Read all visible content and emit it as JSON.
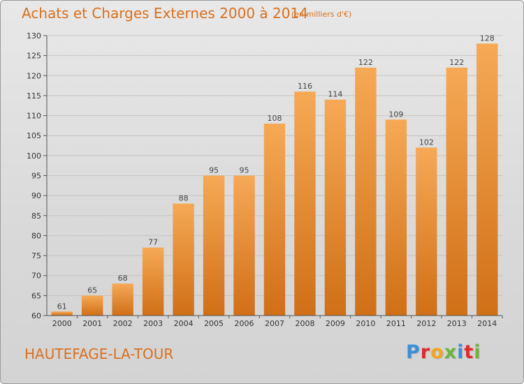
{
  "header": {
    "title": "Achats et Charges Externes 2000 à 2014",
    "unit": "(en milliers d'€)"
  },
  "footer": {
    "city": "HAUTEFAGE-LA-TOUR",
    "logo": [
      "P",
      "r",
      "o",
      "x",
      "i",
      "t",
      "i"
    ]
  },
  "colors": {
    "bar_top": "#f6a955",
    "bar_bottom": "#d06f16",
    "title": "#d9701e",
    "logo": [
      "#3a8fd9",
      "#e8262a",
      "#f2a81d",
      "#6db53a",
      "#3a8fd9",
      "#e8262a",
      "#6db53a"
    ]
  },
  "chart_data": {
    "type": "bar",
    "title": "Achats et Charges Externes 2000 à 2014",
    "xlabel": "",
    "ylabel": "",
    "categories": [
      "2000",
      "2001",
      "2002",
      "2003",
      "2004",
      "2005",
      "2006",
      "2007",
      "2008",
      "2009",
      "2010",
      "2011",
      "2012",
      "2013",
      "2014"
    ],
    "values": [
      61,
      65,
      68,
      77,
      88,
      95,
      95,
      108,
      116,
      114,
      122,
      109,
      102,
      122,
      128
    ],
    "ylim": [
      60,
      130
    ],
    "yticks": [
      60,
      65,
      70,
      75,
      80,
      85,
      90,
      95,
      100,
      105,
      110,
      115,
      120,
      125,
      130
    ],
    "grid": true,
    "legend": "none"
  }
}
